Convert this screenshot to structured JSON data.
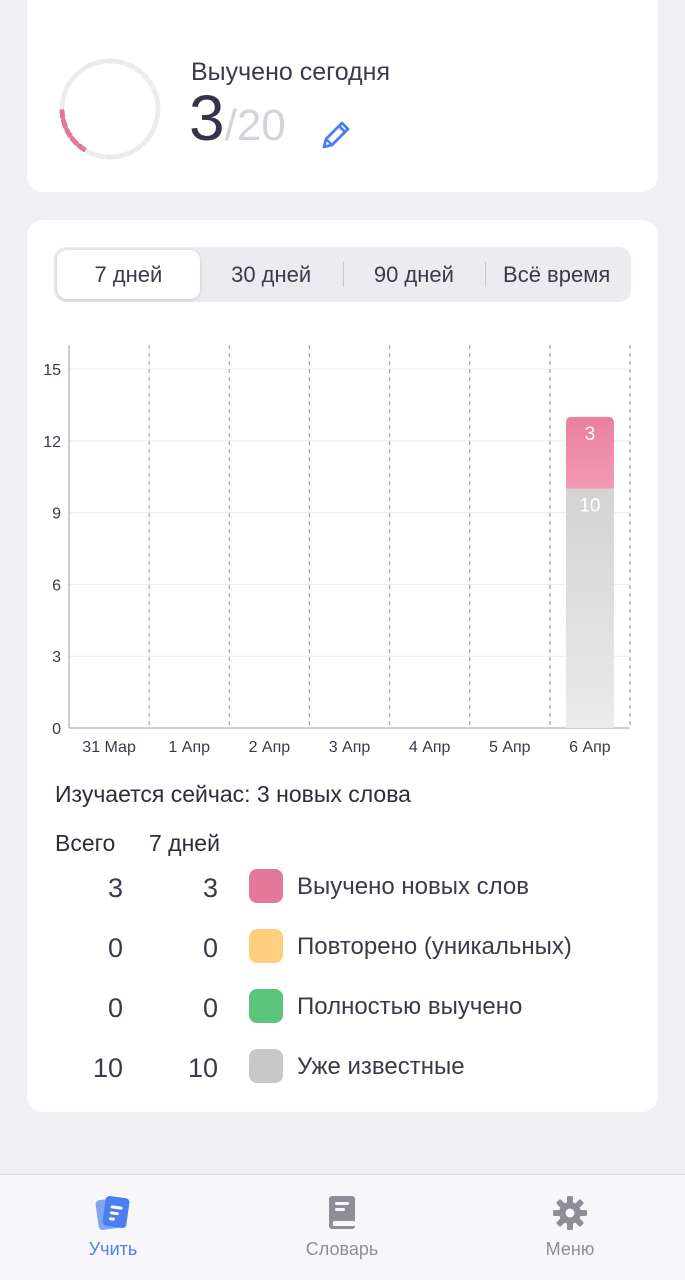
{
  "today": {
    "label": "Выучено сегодня",
    "count": "3",
    "goal": "/20",
    "progress": 0.15
  },
  "periods": {
    "active_index": 0,
    "items": [
      "7 дней",
      "30 дней",
      "90 дней",
      "Всё время"
    ]
  },
  "chart_data": {
    "type": "bar",
    "stacked": true,
    "categories": [
      "31 Мар",
      "1 Апр",
      "2 Апр",
      "3 Апр",
      "4 Апр",
      "5 Апр",
      "6 Апр"
    ],
    "series": [
      {
        "values": [
          0,
          0,
          0,
          0,
          0,
          0,
          10
        ],
        "color": "#d8d8d8"
      },
      {
        "values": [
          0,
          0,
          0,
          0,
          0,
          0,
          3
        ],
        "color": "#ec87a5"
      }
    ],
    "yticks": [
      0,
      3,
      6,
      9,
      12,
      15
    ],
    "ylim": [
      0,
      16
    ]
  },
  "studying_now": "Изучается сейчас: 3 новых слова",
  "stats": {
    "col_total": "Всего",
    "col_week": "7 дней",
    "rows": [
      {
        "total": "3",
        "week": "3",
        "label": "Выучено новых слов",
        "color": "#e3789a"
      },
      {
        "total": "0",
        "week": "0",
        "label": "Повторено (уникальных)",
        "color": "#ffcf7f"
      },
      {
        "total": "0",
        "week": "0",
        "label": "Полностью выучено",
        "color": "#5bc57b"
      },
      {
        "total": "10",
        "week": "10",
        "label": "Уже известные",
        "color": "#c8c8c8"
      }
    ]
  },
  "tabbar": {
    "learn": "Учить",
    "dictionary": "Словарь",
    "menu": "Меню"
  },
  "colors": {
    "accent": "#4a7ff0",
    "ring_done": "#e3789a",
    "ring_todo": "#ececf0"
  }
}
